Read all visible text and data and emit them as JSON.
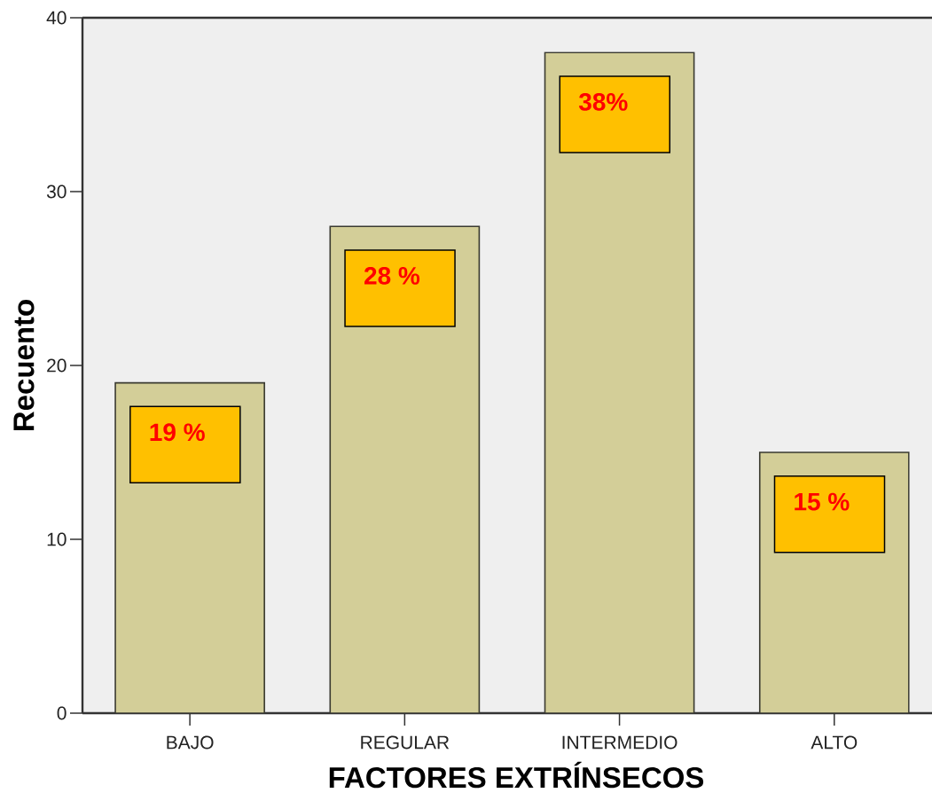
{
  "chart_data": {
    "type": "bar",
    "xlabel": "FACTORES EXTRÍNSECOS",
    "ylabel": "Recuento",
    "categories": [
      "BAJO",
      "REGULAR",
      "INTERMEDIO",
      "ALTO"
    ],
    "values": [
      19,
      28,
      38,
      15
    ],
    "color": "#d3ce98",
    "value_labels": [
      "19 %",
      "28 %",
      "38%",
      "15 %"
    ],
    "ylim": [
      0,
      40
    ],
    "yticks": [
      0,
      10,
      20,
      30,
      40
    ]
  }
}
